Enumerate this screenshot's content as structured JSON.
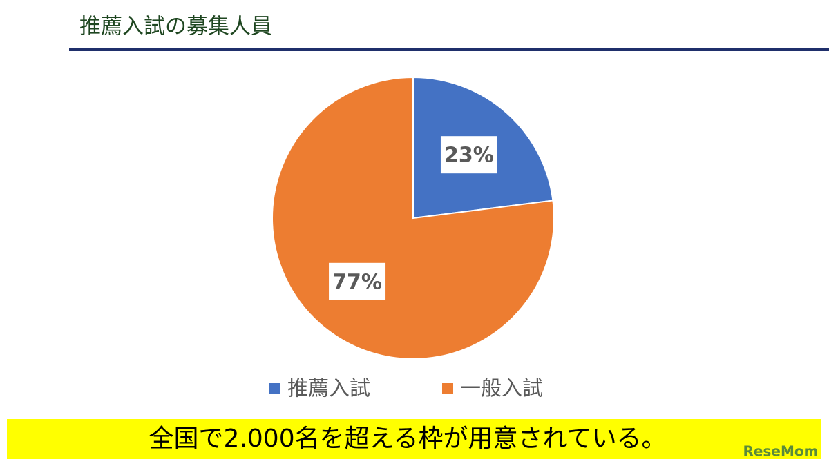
{
  "chart_data": {
    "type": "pie",
    "title": "推薦入試の募集人員",
    "categories": [
      "推薦入試",
      "一般入試"
    ],
    "values": [
      23,
      77
    ],
    "value_labels": [
      "23%",
      "77%"
    ],
    "colors": [
      "#4472c4",
      "#ed7d31"
    ],
    "legend": "bottom",
    "caption": "全国で2.000名を超える枠が用意されている。",
    "watermark": "ReseMom"
  }
}
